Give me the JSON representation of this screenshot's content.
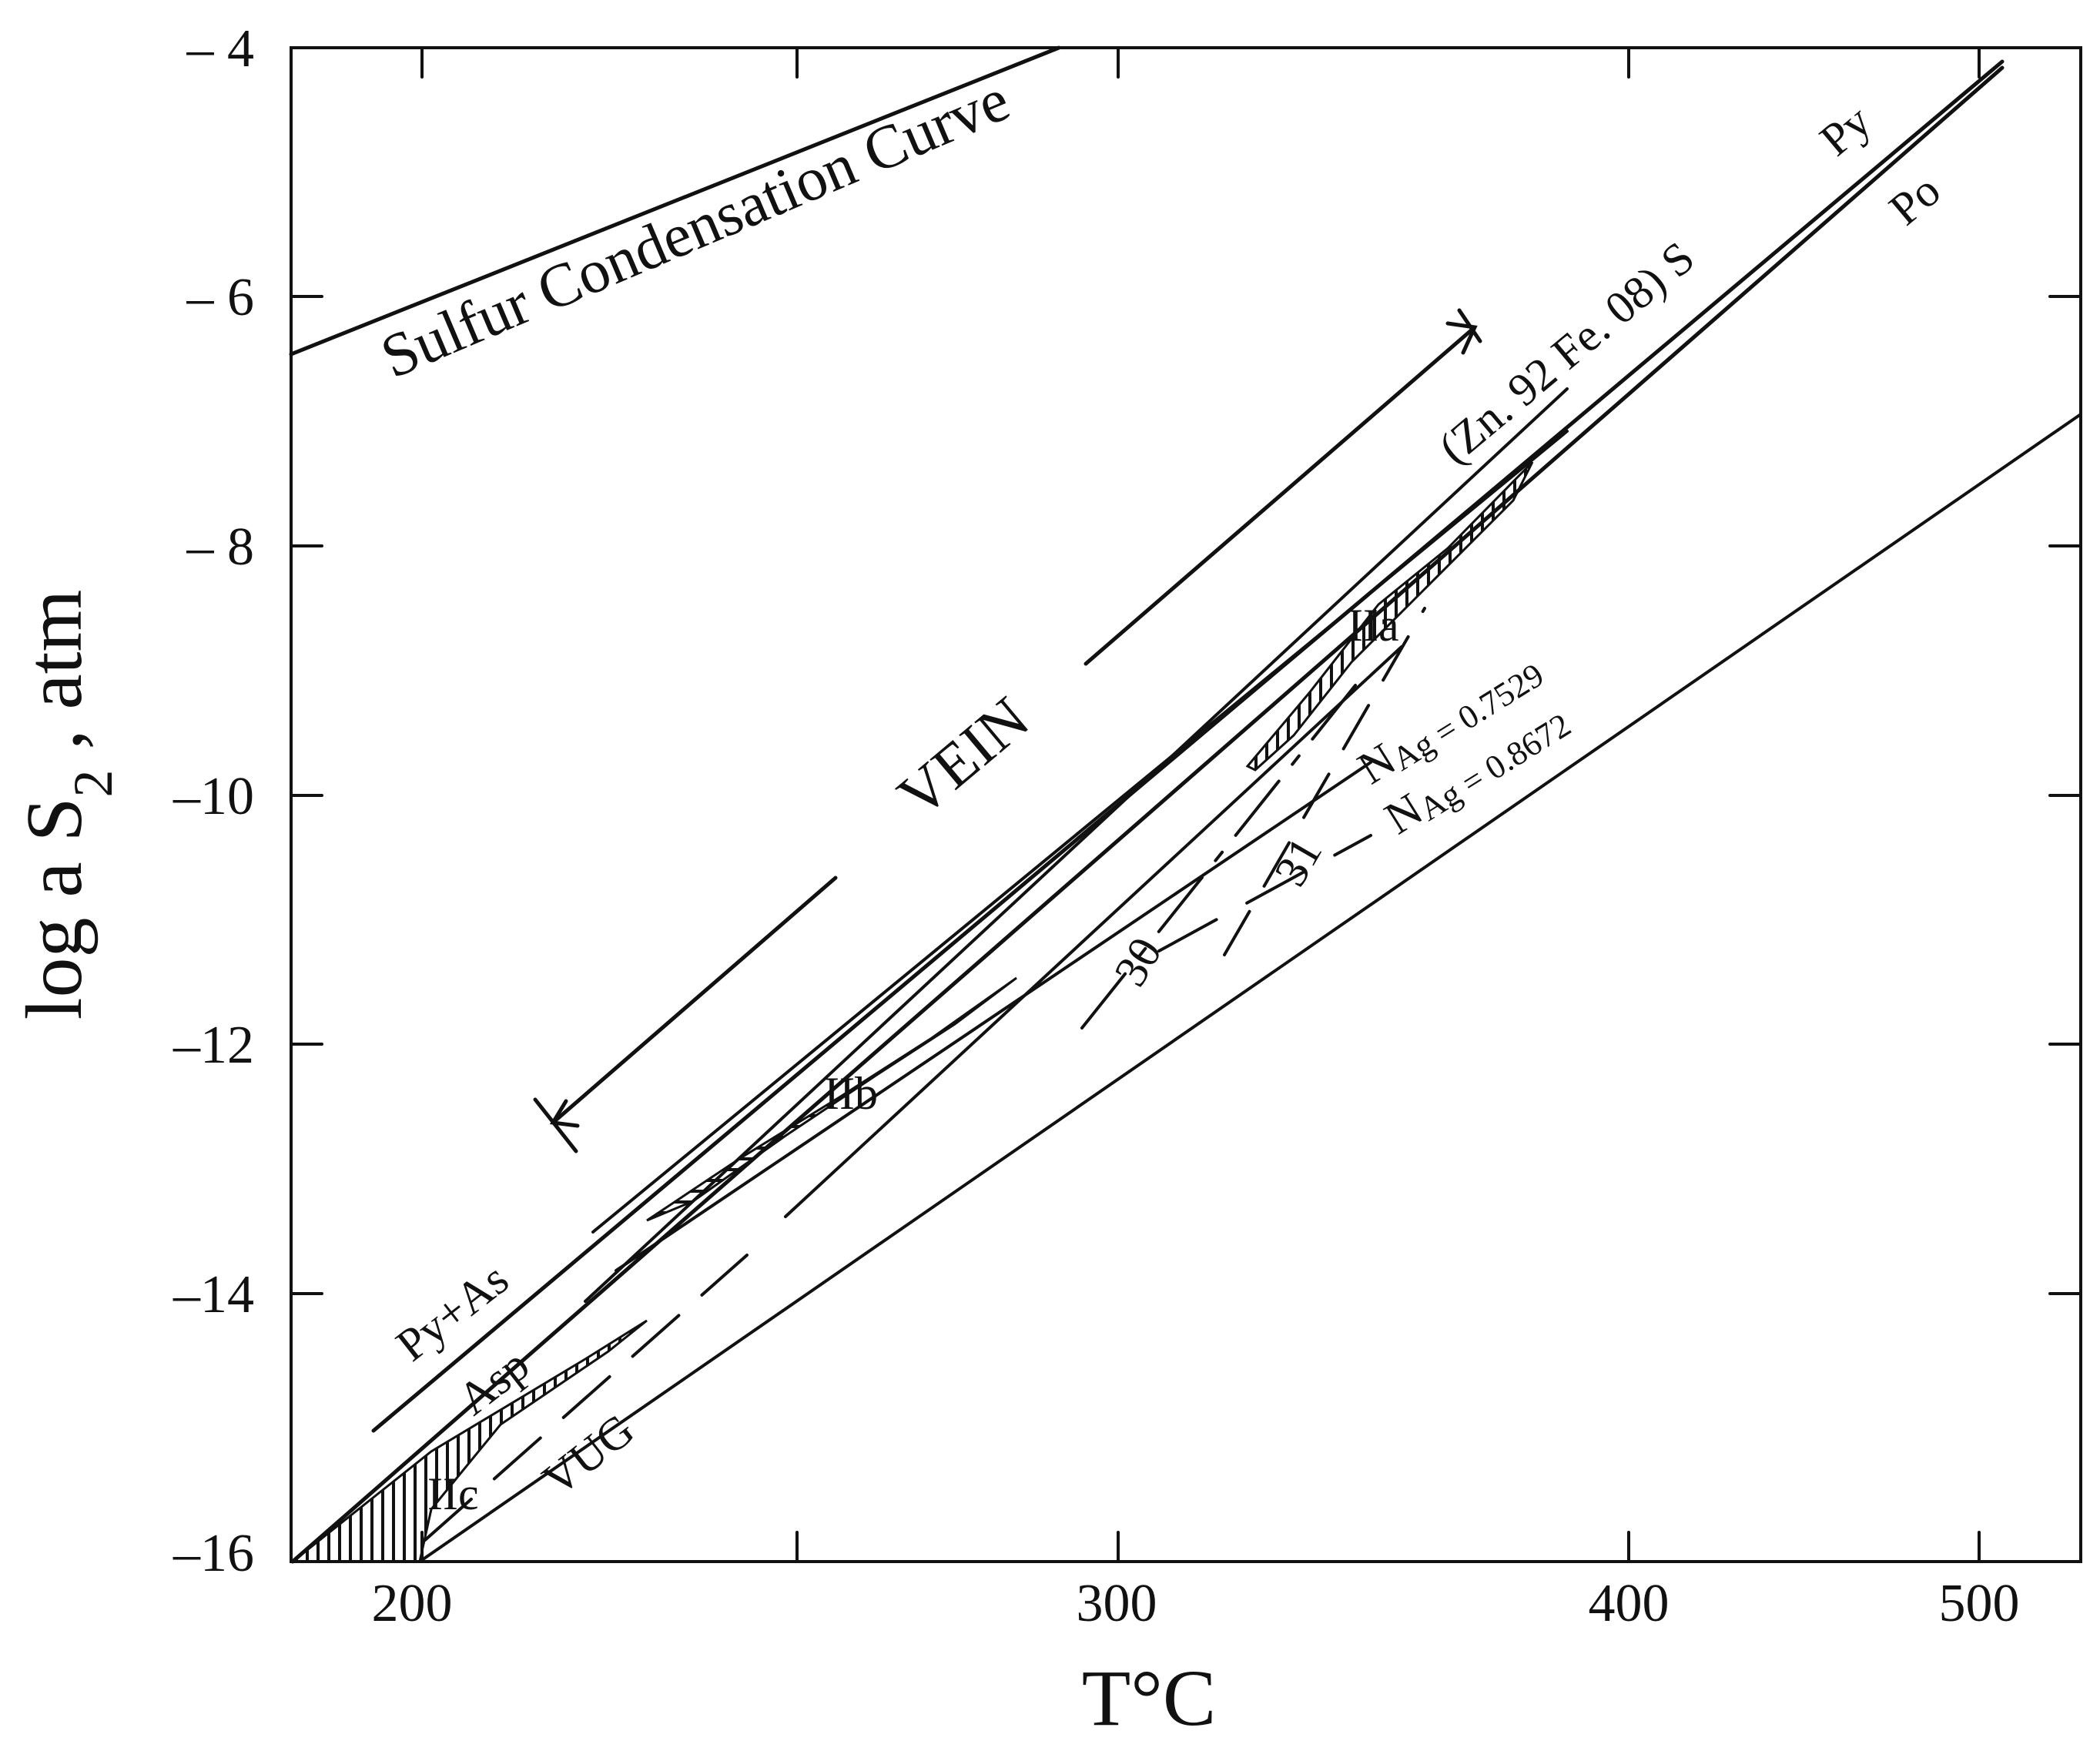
{
  "chart_data": {
    "type": "line",
    "x_axis": {
      "label": "T°C",
      "tick_labels": [
        "200",
        "300",
        "400",
        "500"
      ],
      "scale": "reciprocal"
    },
    "y_axis": {
      "label": "log a S2 , atm",
      "label_main": "log a S",
      "label_sub": "2",
      "label_suffix": " , atm",
      "tick_labels": [
        "– 4",
        "– 6",
        "– 8",
        "–10",
        "–12",
        "–14",
        "–16"
      ],
      "range": [
        -16,
        -4
      ]
    },
    "curve_labels": {
      "sulfur_condensation": "Sulfur Condensation Curve",
      "sphalerite": "(Zn. 92 Fe. 08) S",
      "py": "Py",
      "po": "Po",
      "py_as": "Py+As",
      "asp": "Asp",
      "nag1": "NAg = 0.7529",
      "nag1_main": "N",
      "nag1_sub": "Ag = 0.7529",
      "nag2": "NAg = 0.8672",
      "nag2_main": "N",
      "nag2_sub": "Ag = 0.8672"
    },
    "region_labels": {
      "vein": "VEIN",
      "vug": "VUG",
      "iia": "IIa",
      "iib": "IIb",
      "iic": "IIc",
      "n30": "30",
      "n31": "31"
    }
  }
}
